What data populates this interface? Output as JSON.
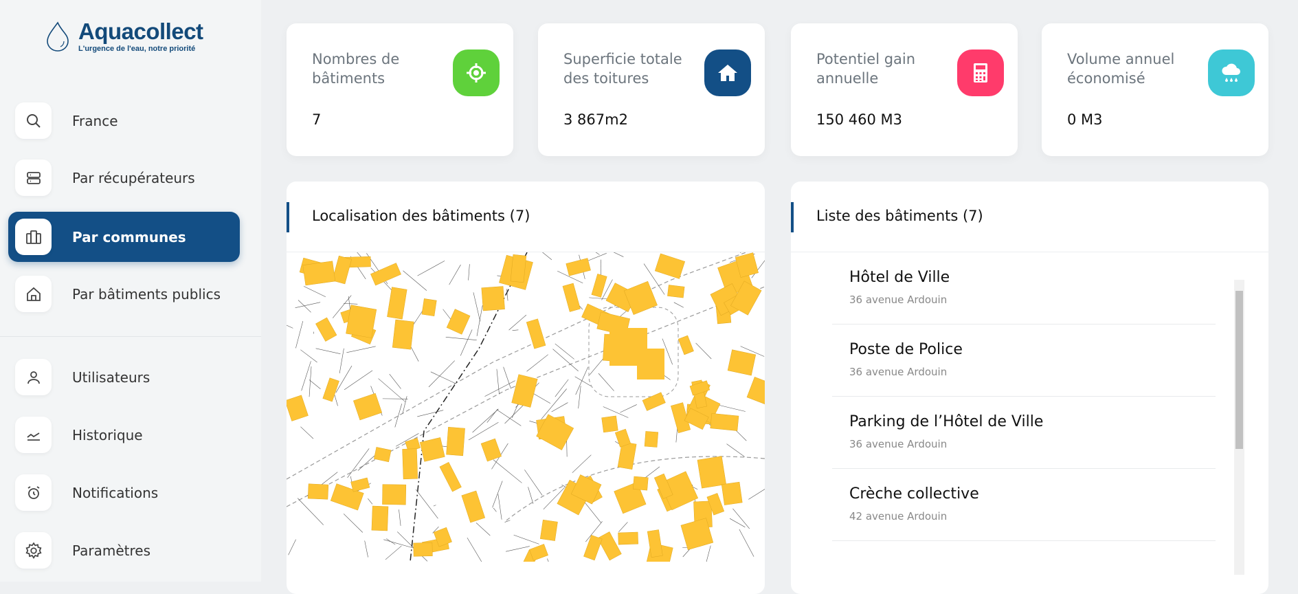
{
  "brand": {
    "name": "Aquacollect",
    "tagline": "L'urgence de l'eau, notre priorité",
    "color": "#134a7a"
  },
  "sidebar": {
    "items": [
      {
        "label": "France",
        "icon": "search-icon",
        "active": false
      },
      {
        "label": "Par récupérateurs",
        "icon": "server-icon",
        "active": false
      },
      {
        "label": "Par communes",
        "icon": "buildings-icon",
        "active": true
      },
      {
        "label": "Par bâtiments publics",
        "icon": "home-icon",
        "active": false
      },
      {
        "label": "Utilisateurs",
        "icon": "user-icon",
        "active": false
      },
      {
        "label": "Historique",
        "icon": "chart-line-icon",
        "active": false
      },
      {
        "label": "Notifications",
        "icon": "alarm-clock-icon",
        "active": false
      },
      {
        "label": "Paramètres",
        "icon": "gear-icon",
        "active": false
      }
    ]
  },
  "stats": [
    {
      "title": "Nombres de bâtiments",
      "value": "7",
      "icon": "crosshair-icon",
      "color": "#5fd13b"
    },
    {
      "title": "Superficie totale des toitures",
      "value": "3 867m2",
      "icon": "house-icon",
      "color": "#134f86"
    },
    {
      "title": "Potentiel gain annuelle",
      "value": "150 460 M3",
      "icon": "calculator-icon",
      "color": "#ff3b6b"
    },
    {
      "title": "Volume annuel économisé",
      "value": "0 M3",
      "icon": "cloud-rain-icon",
      "color": "#3ec8d6"
    }
  ],
  "map_panel": {
    "title": "Localisation des bâtiments (7)"
  },
  "list_panel": {
    "title": "Liste des bâtiments (7)",
    "items": [
      {
        "name": "Hôtel de Ville",
        "address": "36 avenue Ardouin"
      },
      {
        "name": "Poste de Police",
        "address": "36 avenue Ardouin"
      },
      {
        "name": "Parking de l’Hôtel de Ville",
        "address": "36 avenue Ardouin"
      },
      {
        "name": "Crèche collective",
        "address": "42 avenue Ardouin"
      }
    ]
  }
}
